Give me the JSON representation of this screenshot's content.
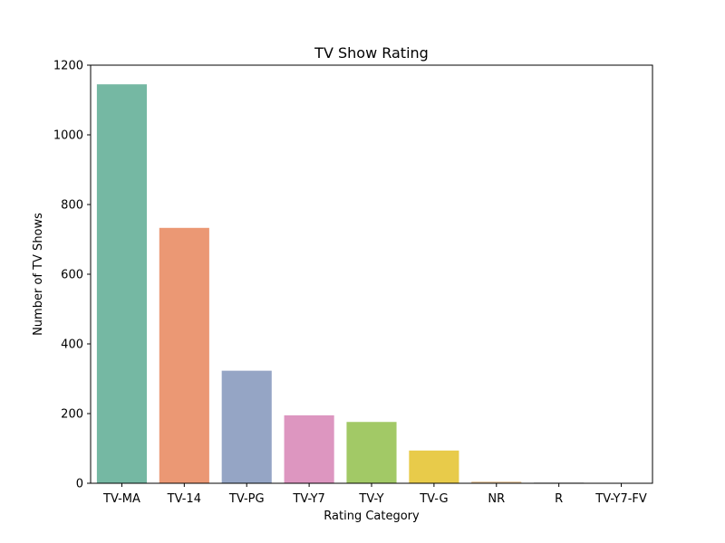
{
  "chart_data": {
    "type": "bar",
    "title": "TV Show Rating",
    "xlabel": "Rating Category",
    "ylabel": "Number of TV Shows",
    "categories": [
      "TV-MA",
      "TV-14",
      "TV-PG",
      "TV-Y7",
      "TV-Y",
      "TV-G",
      "NR",
      "R",
      "TV-Y7-FV"
    ],
    "values": [
      1145,
      733,
      323,
      195,
      176,
      94,
      5,
      2,
      1
    ],
    "colors": [
      "#75b8a3",
      "#eb9874",
      "#95a5c5",
      "#dd96c0",
      "#a2c966",
      "#e8cb4a",
      "#e3c59e",
      "#b8b8b8",
      "#b3b3b3"
    ],
    "ylim": [
      0,
      1200
    ],
    "yticks": [
      0,
      200,
      400,
      600,
      800,
      1000,
      1200
    ],
    "grid": false,
    "legend": "none"
  }
}
